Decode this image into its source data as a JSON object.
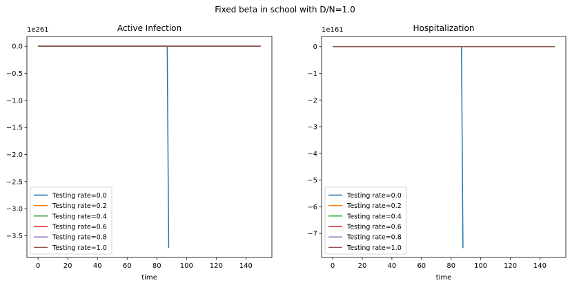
{
  "figure_title": "Fixed beta in school with D/N=1.0",
  "chart_data": [
    {
      "type": "line",
      "title": "Active Infection",
      "xlabel": "time",
      "ylabel": "",
      "offset_text": "1e261",
      "xlim": [
        -7.5,
        157.5
      ],
      "ylim": [
        -3.9,
        0.18
      ],
      "xticks": [
        0,
        20,
        40,
        60,
        80,
        100,
        120,
        140
      ],
      "yticks": [
        0.0,
        -0.5,
        -1.0,
        -1.5,
        -2.0,
        -2.5,
        -3.0,
        -3.5
      ],
      "ytick_labels": [
        "0.0",
        "−0.5",
        "−1.0",
        "−1.5",
        "−2.0",
        "−2.5",
        "−3.0",
        "−3.5"
      ],
      "legend_position": "lower-left",
      "series": [
        {
          "name": "Testing rate=0.0",
          "color": "#1f77b4",
          "x": [
            0,
            87,
            88
          ],
          "y": [
            0,
            0,
            -3.72
          ]
        },
        {
          "name": "Testing rate=0.2",
          "color": "#ff7f0e",
          "x": [
            0,
            150
          ],
          "y": [
            0,
            0
          ]
        },
        {
          "name": "Testing rate=0.4",
          "color": "#2ca02c",
          "x": [
            0,
            150
          ],
          "y": [
            0,
            0
          ]
        },
        {
          "name": "Testing rate=0.6",
          "color": "#d62728",
          "x": [
            0,
            150
          ],
          "y": [
            0,
            0
          ]
        },
        {
          "name": "Testing rate=0.8",
          "color": "#9467bd",
          "x": [
            0,
            150
          ],
          "y": [
            0,
            0
          ]
        },
        {
          "name": "Testing rate=1.0",
          "color": "#8c564b",
          "x": [
            0,
            150
          ],
          "y": [
            0,
            0
          ]
        }
      ]
    },
    {
      "type": "line",
      "title": "Hospitalization",
      "xlabel": "time",
      "ylabel": "",
      "offset_text": "1e161",
      "xlim": [
        -7.5,
        157.5
      ],
      "ylim": [
        -7.9,
        0.38
      ],
      "xticks": [
        0,
        20,
        40,
        60,
        80,
        100,
        120,
        140
      ],
      "yticks": [
        0,
        -1,
        -2,
        -3,
        -4,
        -5,
        -6,
        -7
      ],
      "ytick_labels": [
        "0",
        "−1",
        "−2",
        "−3",
        "−4",
        "−5",
        "−6",
        "−7"
      ],
      "legend_position": "lower-left",
      "series": [
        {
          "name": "Testing rate=0.0",
          "color": "#1f77b4",
          "x": [
            0,
            87,
            88
          ],
          "y": [
            0,
            0,
            -7.55
          ]
        },
        {
          "name": "Testing rate=0.2",
          "color": "#ff7f0e",
          "x": [
            0,
            150
          ],
          "y": [
            0,
            0
          ]
        },
        {
          "name": "Testing rate=0.4",
          "color": "#2ca02c",
          "x": [
            0,
            150
          ],
          "y": [
            0,
            0
          ]
        },
        {
          "name": "Testing rate=0.6",
          "color": "#d62728",
          "x": [
            0,
            150
          ],
          "y": [
            0,
            0
          ]
        },
        {
          "name": "Testing rate=0.8",
          "color": "#9467bd",
          "x": [
            0,
            150
          ],
          "y": [
            0,
            0
          ]
        },
        {
          "name": "Testing rate=1.0",
          "color": "#8c564b",
          "x": [
            0,
            150
          ],
          "y": [
            0,
            0
          ]
        }
      ]
    }
  ]
}
